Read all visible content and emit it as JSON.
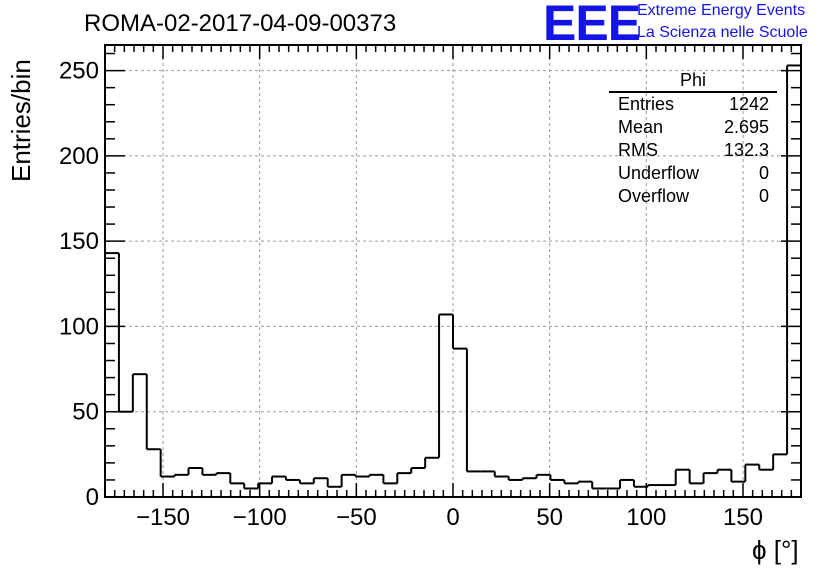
{
  "header": {
    "title": "ROMA-02-2017-04-09-00373",
    "logo": {
      "acronym": "EEE",
      "line1": "Extreme Energy Events",
      "line2": "La Scienza nelle Scuole",
      "color": "#1414e6"
    }
  },
  "stats_box": {
    "title": "Phi",
    "rows": [
      {
        "label": "Entries",
        "value": "1242"
      },
      {
        "label": "Mean",
        "value": "2.695"
      },
      {
        "label": "RMS",
        "value": "132.3"
      },
      {
        "label": "Underflow",
        "value": "0"
      },
      {
        "label": "Overflow",
        "value": "0"
      }
    ]
  },
  "chart_data": {
    "type": "histogram",
    "xlabel": "ϕ [°]",
    "ylabel": "Entries/bin",
    "xlim": [
      -180,
      180
    ],
    "ylim": [
      0,
      265
    ],
    "bin_width": 7.2,
    "grid": true,
    "x_ticks": [
      -150,
      -100,
      -50,
      0,
      50,
      100,
      150
    ],
    "x_tick_labels": [
      "−150",
      "−100",
      "−50",
      "0",
      "50",
      "100",
      "150"
    ],
    "y_ticks": [
      0,
      50,
      100,
      150,
      200,
      250
    ],
    "y_tick_labels": [
      "0",
      "50",
      "100",
      "150",
      "200",
      "250"
    ],
    "values": [
      143,
      50,
      72,
      28,
      12,
      13,
      17,
      13,
      14,
      8,
      5,
      8,
      12,
      10,
      8,
      11,
      6,
      13,
      12,
      13,
      8,
      14,
      17,
      23,
      107,
      87,
      15,
      15,
      12,
      10,
      11,
      13,
      10,
      8,
      9,
      5,
      5,
      10,
      6,
      7,
      7,
      16,
      8,
      14,
      16,
      9,
      19,
      16,
      25,
      253
    ]
  }
}
